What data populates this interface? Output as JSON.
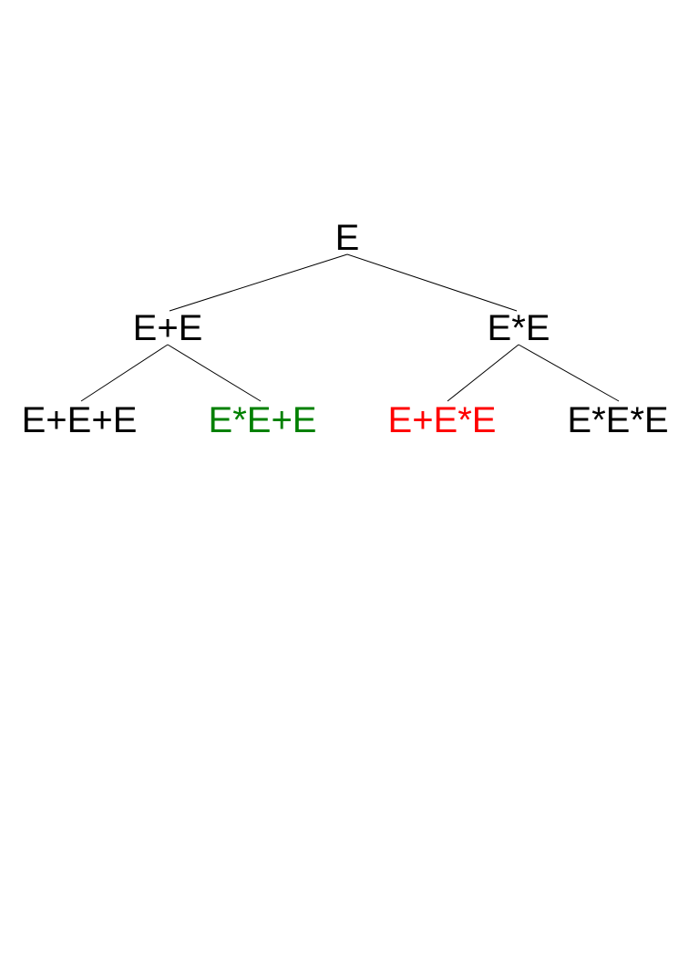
{
  "tree": {
    "root": {
      "label": "E"
    },
    "level1": [
      {
        "label": "E+E"
      },
      {
        "label": "E*E"
      }
    ],
    "level2": [
      {
        "label": "E+E+E",
        "color": "#000000"
      },
      {
        "label": "E*E+E",
        "color": "#008000"
      },
      {
        "label": "E+E*E",
        "color": "#ff0000"
      },
      {
        "label": "E*E*E",
        "color": "#000000"
      }
    ],
    "edges": [
      {
        "from": "E",
        "to": "E+E"
      },
      {
        "from": "E",
        "to": "E*E"
      },
      {
        "from": "E+E",
        "to": "E+E+E"
      },
      {
        "from": "E+E",
        "to": "E*E+E"
      },
      {
        "from": "E*E",
        "to": "E+E*E"
      },
      {
        "from": "E*E",
        "to": "E*E*E"
      }
    ]
  }
}
